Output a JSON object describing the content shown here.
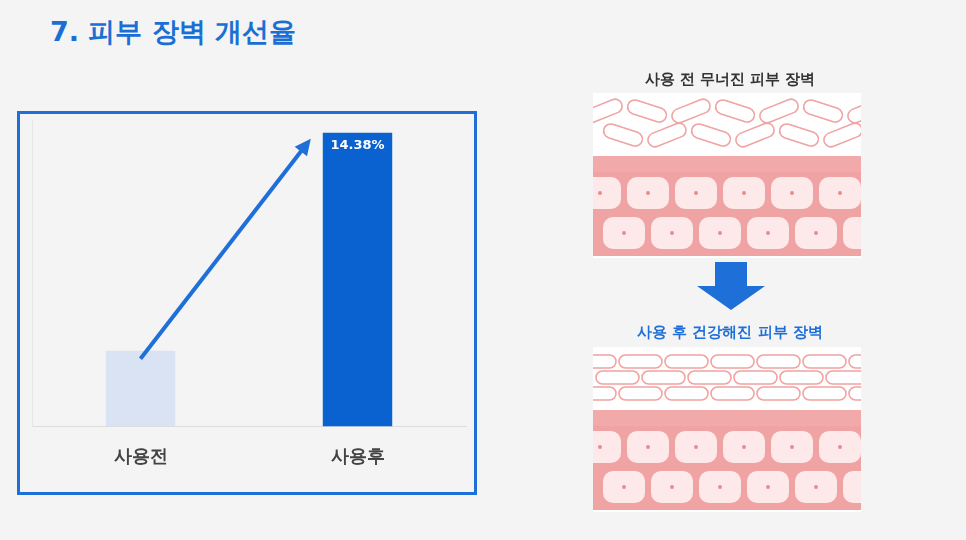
{
  "chart_data": {
    "type": "bar",
    "title": "7. 피부 장벽 개선율",
    "categories": [
      "사용전",
      "사용후"
    ],
    "values": [
      3.7,
      14.38
    ],
    "value_labels": [
      null,
      "14.38%"
    ],
    "colors": [
      "#dae3f3",
      "#0a62d0"
    ],
    "ylim": [
      0,
      15
    ],
    "grid": false,
    "data_labels": true,
    "tick_labels": "x"
  },
  "diagram": {
    "before_label": "사용 전 무너진 피부 장벽",
    "after_label": "사용 후 건강해진 피부 장벽"
  }
}
